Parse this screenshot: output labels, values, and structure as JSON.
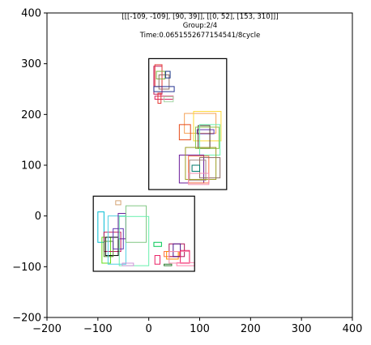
{
  "chart_data": {
    "type": "scatter",
    "title_lines": [
      "[[[-109, -109], [90, 39]], [[0, 52], [153, 310]]]",
      "Group:2/4",
      "Time:0.0651552677154541/8cycle"
    ],
    "xlabel": "",
    "ylabel": "",
    "xlim": [
      -200,
      400
    ],
    "ylim": [
      -200,
      400
    ],
    "xticks": [
      -200,
      -100,
      0,
      100,
      200,
      300,
      400
    ],
    "yticks": [
      -200,
      -100,
      0,
      100,
      200,
      300,
      400
    ],
    "grid": false,
    "groups": [
      {
        "x0": -109,
        "y0": -109,
        "x1": 90,
        "y1": 39,
        "color": "#000000"
      },
      {
        "x0": 0,
        "y0": 52,
        "x1": 153,
        "y1": 310,
        "color": "#000000"
      }
    ],
    "rects": [
      {
        "x0": 10,
        "y0": 240,
        "x1": 26,
        "y1": 295,
        "color": "#c2185b"
      },
      {
        "x0": 12,
        "y0": 255,
        "x1": 26,
        "y1": 298,
        "color": "#e53935"
      },
      {
        "x0": 15,
        "y0": 270,
        "x1": 32,
        "y1": 285,
        "color": "#7cb342"
      },
      {
        "x0": 20,
        "y0": 250,
        "x1": 40,
        "y1": 278,
        "color": "#8d6e63"
      },
      {
        "x0": 33,
        "y0": 272,
        "x1": 42,
        "y1": 285,
        "color": "#1e3a8a"
      },
      {
        "x0": 10,
        "y0": 245,
        "x1": 50,
        "y1": 255,
        "color": "#283593"
      },
      {
        "x0": 12,
        "y0": 230,
        "x1": 48,
        "y1": 236,
        "color": "#d81b60"
      },
      {
        "x0": 18,
        "y0": 222,
        "x1": 24,
        "y1": 242,
        "color": "#e53935"
      },
      {
        "x0": 30,
        "y0": 225,
        "x1": 48,
        "y1": 235,
        "color": "#a5d6a7"
      },
      {
        "x0": 70,
        "y0": 163,
        "x1": 132,
        "y1": 202,
        "color": "#f4a259"
      },
      {
        "x0": 88,
        "y0": 148,
        "x1": 142,
        "y1": 206,
        "color": "#fdd835"
      },
      {
        "x0": 60,
        "y0": 150,
        "x1": 82,
        "y1": 180,
        "color": "#e64a19"
      },
      {
        "x0": 95,
        "y0": 162,
        "x1": 128,
        "y1": 170,
        "color": "#5e35b1"
      },
      {
        "x0": 97,
        "y0": 133,
        "x1": 120,
        "y1": 178,
        "color": "#4e342e"
      },
      {
        "x0": 92,
        "y0": 133,
        "x1": 138,
        "y1": 175,
        "color": "#8bc34a"
      },
      {
        "x0": 100,
        "y0": 120,
        "x1": 140,
        "y1": 180,
        "color": "#69f0ae"
      },
      {
        "x0": 60,
        "y0": 65,
        "x1": 108,
        "y1": 120,
        "color": "#6a1b9a"
      },
      {
        "x0": 78,
        "y0": 65,
        "x1": 118,
        "y1": 118,
        "color": "#ff7043"
      },
      {
        "x0": 80,
        "y0": 70,
        "x1": 112,
        "y1": 110,
        "color": "#a1887f"
      },
      {
        "x0": 72,
        "y0": 72,
        "x1": 132,
        "y1": 135,
        "color": "#9e9d24"
      },
      {
        "x0": 100,
        "y0": 75,
        "x1": 140,
        "y1": 115,
        "color": "#8d6e63"
      },
      {
        "x0": 85,
        "y0": 88,
        "x1": 100,
        "y1": 100,
        "color": "#00796b"
      },
      {
        "x0": 78,
        "y0": 62,
        "x1": 118,
        "y1": 84,
        "color": "#f48fb1"
      },
      {
        "x0": -100,
        "y0": -52,
        "x1": -88,
        "y1": 8,
        "color": "#00bcd4"
      },
      {
        "x0": -92,
        "y0": -93,
        "x1": -75,
        "y1": -42,
        "color": "#64dd17"
      },
      {
        "x0": -88,
        "y0": -70,
        "x1": -55,
        "y1": -32,
        "color": "#c2185b"
      },
      {
        "x0": -85,
        "y0": -78,
        "x1": -60,
        "y1": -42,
        "color": "#000000"
      },
      {
        "x0": -88,
        "y0": -80,
        "x1": -70,
        "y1": -50,
        "color": "#558b2f"
      },
      {
        "x0": -80,
        "y0": -95,
        "x1": -45,
        "y1": 0,
        "color": "#4dd0e1"
      },
      {
        "x0": -70,
        "y0": -65,
        "x1": -50,
        "y1": -25,
        "color": "#5e35b1"
      },
      {
        "x0": -60,
        "y0": -45,
        "x1": -45,
        "y1": 5,
        "color": "#6a1b9a"
      },
      {
        "x0": -45,
        "y0": -52,
        "x1": -5,
        "y1": 20,
        "color": "#81c784"
      },
      {
        "x0": -58,
        "y0": -98,
        "x1": 0,
        "y1": -1,
        "color": "#69f0ae"
      },
      {
        "x0": -65,
        "y0": 22,
        "x1": -55,
        "y1": 30,
        "color": "#d4a373"
      },
      {
        "x0": -52,
        "y0": -98,
        "x1": -30,
        "y1": -93,
        "color": "#ce93d8"
      },
      {
        "x0": 10,
        "y0": -60,
        "x1": 25,
        "y1": -52,
        "color": "#00c853"
      },
      {
        "x0": 12,
        "y0": -95,
        "x1": 22,
        "y1": -78,
        "color": "#e91e63"
      },
      {
        "x0": 30,
        "y0": -98,
        "x1": 45,
        "y1": -95,
        "color": "#2e7d32"
      },
      {
        "x0": 30,
        "y0": -80,
        "x1": 60,
        "y1": -70,
        "color": "#ff7043"
      },
      {
        "x0": 35,
        "y0": -85,
        "x1": 58,
        "y1": -70,
        "color": "#fb8c00"
      },
      {
        "x0": 40,
        "y0": -80,
        "x1": 70,
        "y1": -55,
        "color": "#ad1457"
      },
      {
        "x0": 48,
        "y0": -80,
        "x1": 62,
        "y1": -55,
        "color": "#4a148c"
      },
      {
        "x0": 40,
        "y0": -93,
        "x1": 80,
        "y1": -70,
        "color": "#f48fb1"
      },
      {
        "x0": 62,
        "y0": -93,
        "x1": 80,
        "y1": -68,
        "color": "#e91e63"
      },
      {
        "x0": 55,
        "y0": -98,
        "x1": 90,
        "y1": -92,
        "color": "#ff80ab"
      }
    ]
  }
}
